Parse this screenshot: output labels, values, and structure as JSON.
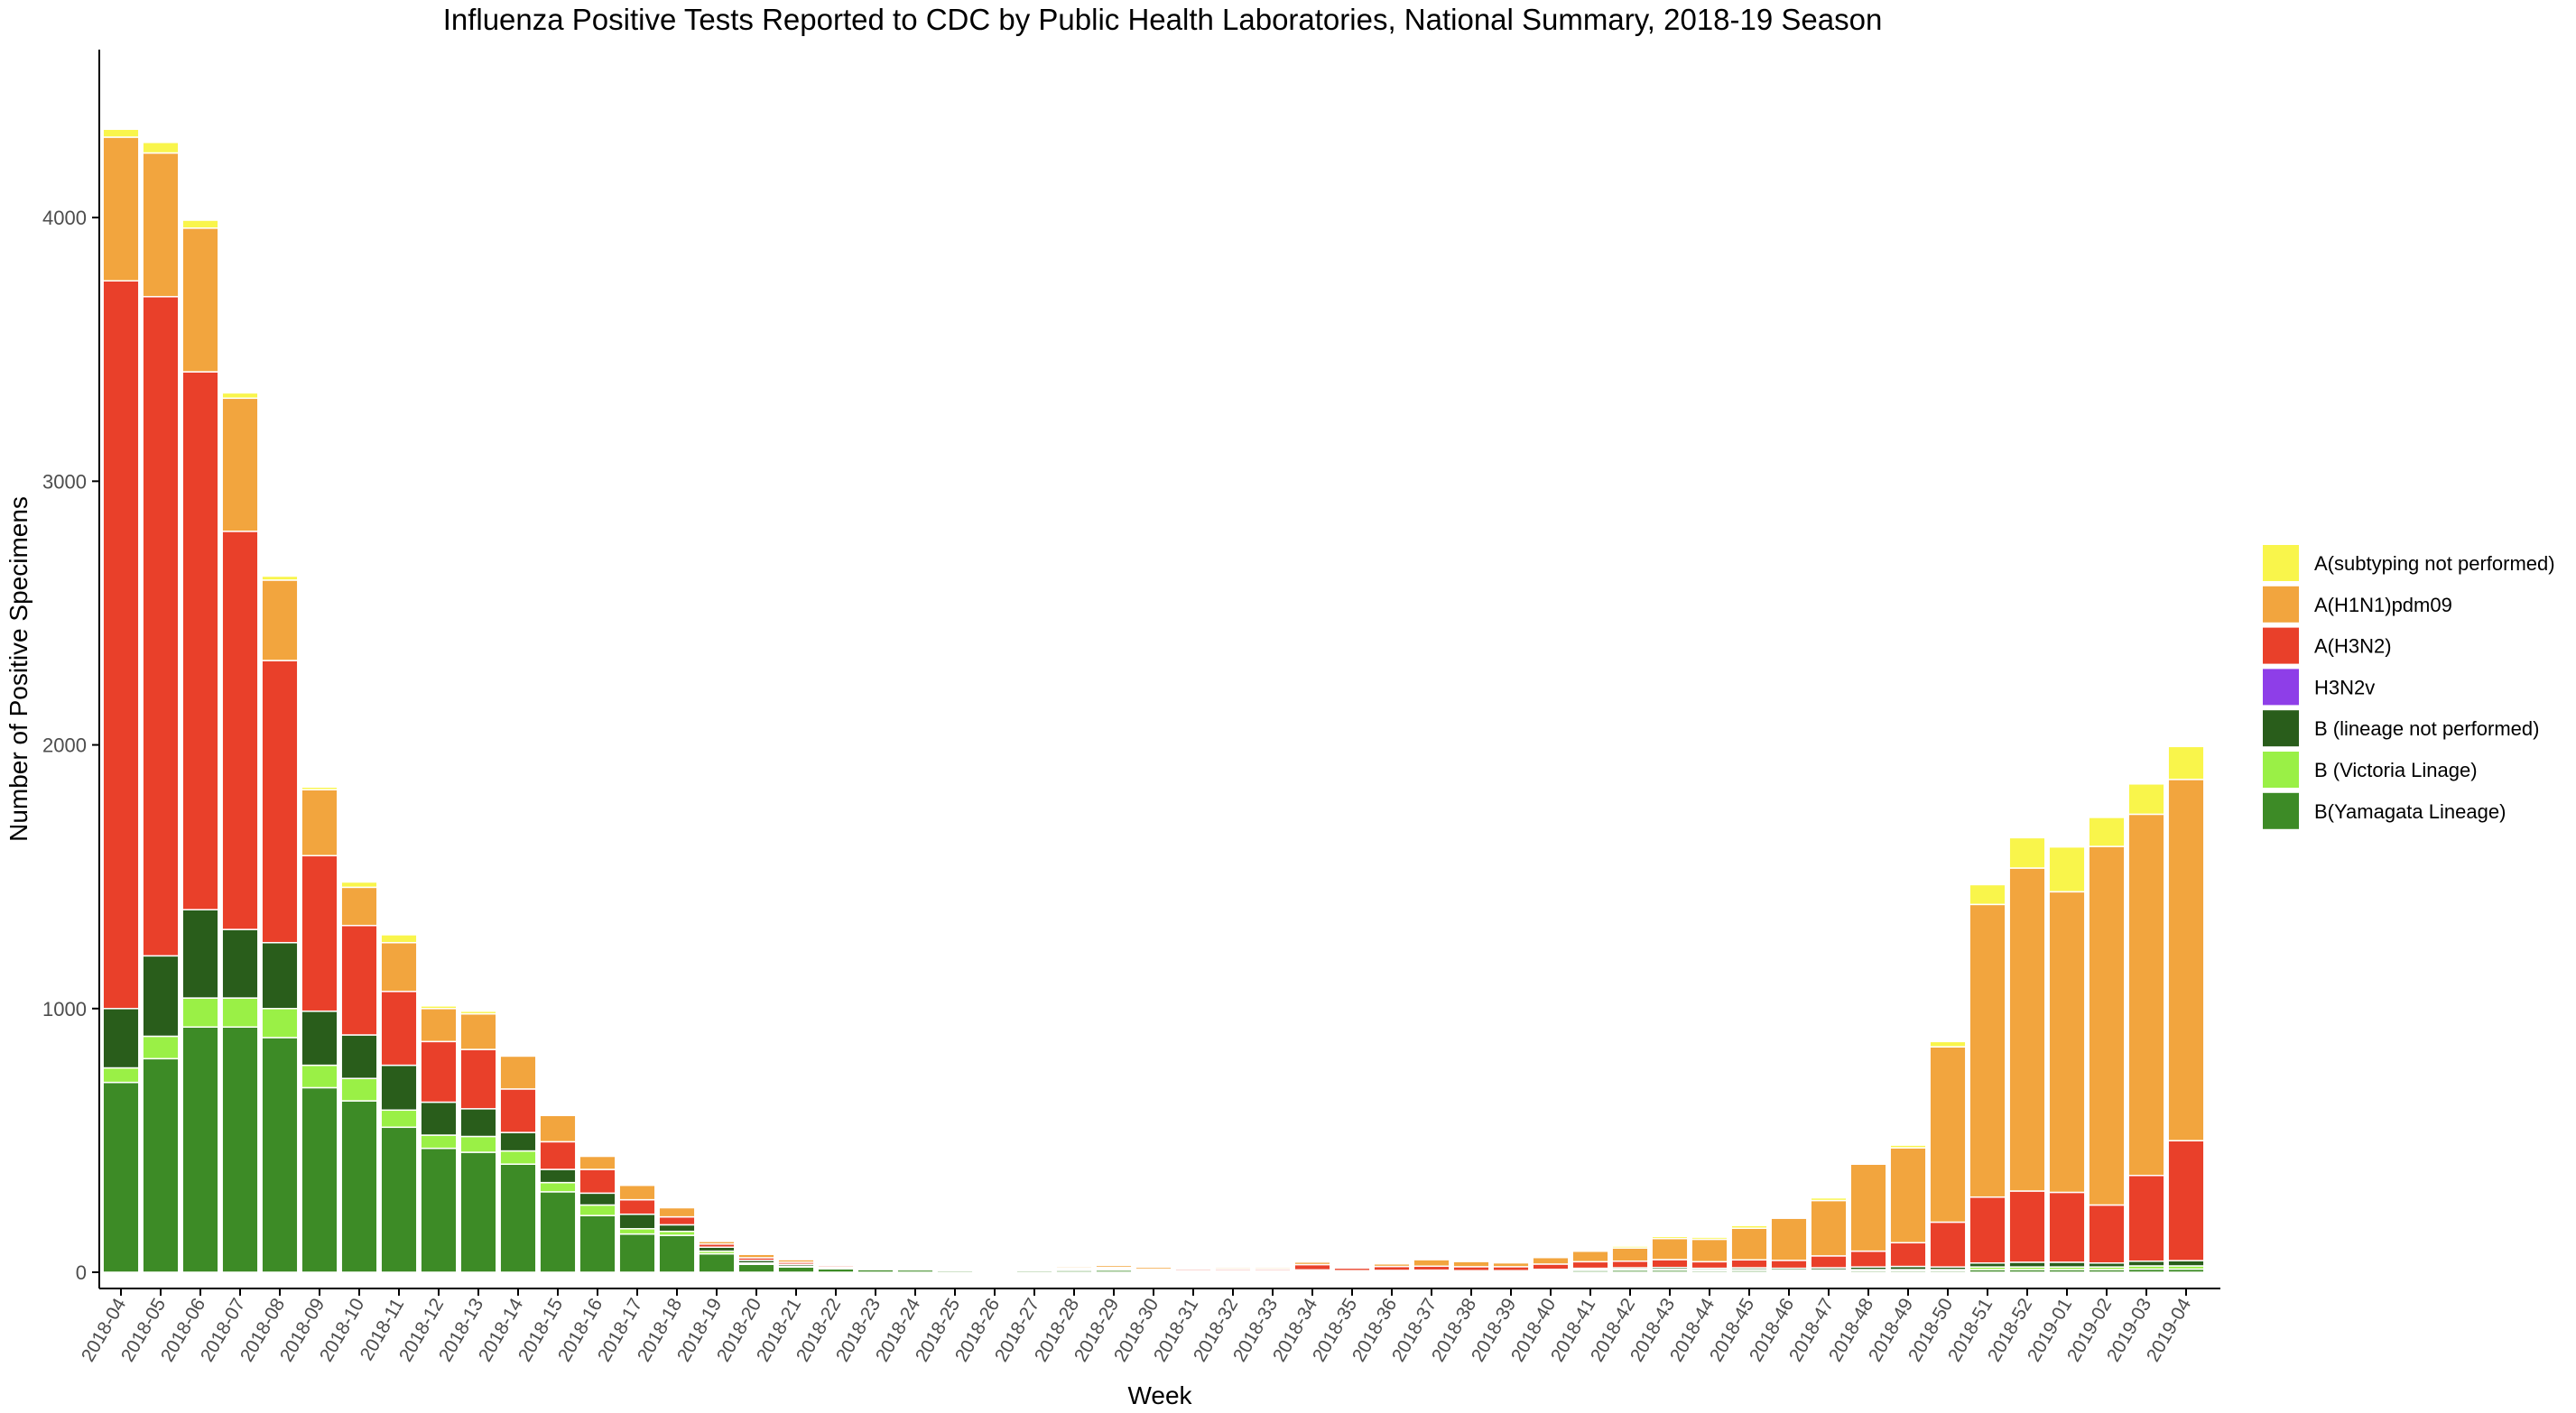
{
  "chart_data": {
    "type": "bar",
    "stacked": true,
    "title": "Influenza Positive Tests Reported to CDC by Public Health Laboratories, National Summary, 2018-19 Season",
    "xlabel": "Week",
    "ylabel": "Number of Positive Specimens",
    "ylim": [
      0,
      4500
    ],
    "yticks": [
      0,
      1000,
      2000,
      3000,
      4000
    ],
    "grid": false,
    "legend_position": "right",
    "categories": [
      "2018-04",
      "2018-05",
      "2018-06",
      "2018-07",
      "2018-08",
      "2018-09",
      "2018-10",
      "2018-11",
      "2018-12",
      "2018-13",
      "2018-14",
      "2018-15",
      "2018-16",
      "2018-17",
      "2018-18",
      "2018-19",
      "2018-20",
      "2018-21",
      "2018-22",
      "2018-23",
      "2018-24",
      "2018-25",
      "2018-26",
      "2018-27",
      "2018-28",
      "2018-29",
      "2018-30",
      "2018-31",
      "2018-32",
      "2018-33",
      "2018-34",
      "2018-35",
      "2018-36",
      "2018-37",
      "2018-38",
      "2018-39",
      "2018-40",
      "2018-41",
      "2018-42",
      "2018-43",
      "2018-44",
      "2018-45",
      "2018-46",
      "2018-47",
      "2018-48",
      "2018-49",
      "2018-50",
      "2018-51",
      "2018-52",
      "2019-01",
      "2019-02",
      "2019-03",
      "2019-04"
    ],
    "series": [
      {
        "name": "B(Yamagata Lineage)",
        "color": "#3d8b26",
        "values": [
          720,
          810,
          930,
          930,
          890,
          700,
          650,
          550,
          470,
          455,
          410,
          305,
          215,
          145,
          140,
          70,
          30,
          20,
          13,
          10,
          9,
          6,
          3,
          6,
          7,
          8,
          4,
          4,
          4,
          4,
          5,
          3,
          4,
          4,
          3,
          3,
          5,
          7,
          8,
          8,
          6,
          7,
          5,
          5,
          6,
          6,
          6,
          10,
          10,
          10,
          10,
          12,
          12
        ]
      },
      {
        "name": "B (Victoria Linage)",
        "color": "#9af046",
        "values": [
          55,
          85,
          110,
          110,
          110,
          85,
          85,
          65,
          50,
          60,
          50,
          35,
          40,
          20,
          15,
          10,
          5,
          3,
          2,
          2,
          2,
          1,
          1,
          2,
          2,
          2,
          1,
          1,
          1,
          1,
          1,
          1,
          1,
          1,
          1,
          1,
          2,
          3,
          3,
          3,
          3,
          3,
          3,
          4,
          4,
          4,
          4,
          10,
          10,
          10,
          10,
          12,
          12
        ]
      },
      {
        "name": "B (lineage not performed)",
        "color": "#295d1b",
        "values": [
          225,
          305,
          335,
          260,
          250,
          205,
          165,
          170,
          125,
          105,
          70,
          50,
          45,
          55,
          25,
          15,
          10,
          7,
          5,
          4,
          4,
          3,
          2,
          3,
          3,
          3,
          2,
          2,
          2,
          2,
          3,
          2,
          2,
          3,
          2,
          2,
          4,
          5,
          6,
          7,
          6,
          7,
          7,
          8,
          10,
          12,
          10,
          15,
          18,
          18,
          15,
          18,
          20
        ]
      },
      {
        "name": "H3N2v",
        "color": "#8e3ee8",
        "values": [
          0,
          0,
          0,
          0,
          0,
          0,
          0,
          0,
          0,
          0,
          0,
          0,
          0,
          0,
          0,
          0,
          0,
          0,
          0,
          0,
          0,
          0,
          0,
          0,
          0,
          0,
          0,
          0,
          0,
          0,
          0,
          0,
          0,
          0,
          0,
          0,
          0,
          0,
          0,
          0,
          0,
          0,
          0,
          0,
          0,
          0,
          0,
          0,
          0,
          0,
          0,
          0,
          0
        ]
      },
      {
        "name": "A(H3N2)",
        "color": "#e9402a",
        "values": [
          2760,
          2500,
          2040,
          1510,
          1070,
          590,
          415,
          280,
          230,
          225,
          165,
          105,
          90,
          55,
          30,
          12,
          10,
          8,
          6,
          4,
          3,
          3,
          4,
          4,
          4,
          5,
          5,
          6,
          6,
          6,
          20,
          10,
          15,
          15,
          15,
          15,
          20,
          25,
          25,
          30,
          25,
          30,
          30,
          45,
          60,
          90,
          170,
          250,
          270,
          265,
          220,
          325,
          455
        ]
      },
      {
        "name": "A(H1N1)pdm09",
        "color": "#f2a53e",
        "values": [
          545,
          545,
          545,
          505,
          305,
          250,
          145,
          185,
          125,
          135,
          125,
          100,
          50,
          55,
          35,
          10,
          13,
          10,
          5,
          4,
          4,
          3,
          2,
          5,
          6,
          8,
          8,
          5,
          6,
          6,
          10,
          5,
          10,
          25,
          20,
          15,
          25,
          40,
          50,
          80,
          85,
          120,
          160,
          210,
          330,
          360,
          665,
          1110,
          1225,
          1140,
          1360,
          1370,
          1370
        ]
      },
      {
        "name": "A(subtyping not performed)",
        "color": "#f9f54b",
        "values": [
          30,
          40,
          30,
          20,
          15,
          10,
          20,
          30,
          10,
          10,
          5,
          5,
          5,
          5,
          5,
          2,
          2,
          2,
          2,
          2,
          2,
          1,
          1,
          2,
          2,
          2,
          2,
          2,
          2,
          2,
          3,
          2,
          2,
          3,
          3,
          3,
          3,
          5,
          7,
          8,
          8,
          10,
          5,
          10,
          5,
          10,
          20,
          75,
          115,
          170,
          110,
          115,
          125
        ]
      }
    ],
    "legend_order": [
      "A(subtyping not performed)",
      "A(H1N1)pdm09",
      "A(H3N2)",
      "H3N2v",
      "B (lineage not performed)",
      "B (Victoria Linage)",
      "B(Yamagata Lineage)"
    ]
  }
}
